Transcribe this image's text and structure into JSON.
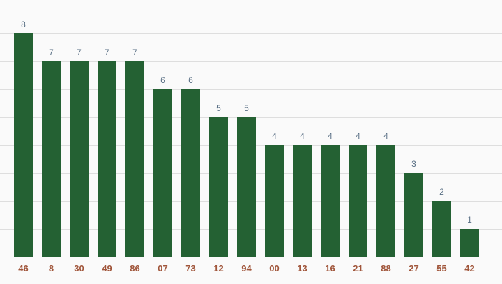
{
  "chart_data": {
    "type": "bar",
    "categories": [
      "46",
      "8",
      "30",
      "49",
      "86",
      "07",
      "73",
      "12",
      "94",
      "00",
      "13",
      "16",
      "21",
      "88",
      "27",
      "55",
      "42"
    ],
    "values": [
      8,
      7,
      7,
      7,
      7,
      6,
      6,
      5,
      5,
      4,
      4,
      4,
      4,
      4,
      3,
      2,
      1
    ],
    "title": "",
    "xlabel": "",
    "ylabel": "",
    "ylim": [
      0,
      9
    ],
    "grid": true,
    "data_labels": true,
    "colors": {
      "bar": "#246133",
      "value_label": "#5a7085",
      "category_label": "#a0553a",
      "grid": "#dedede"
    }
  }
}
